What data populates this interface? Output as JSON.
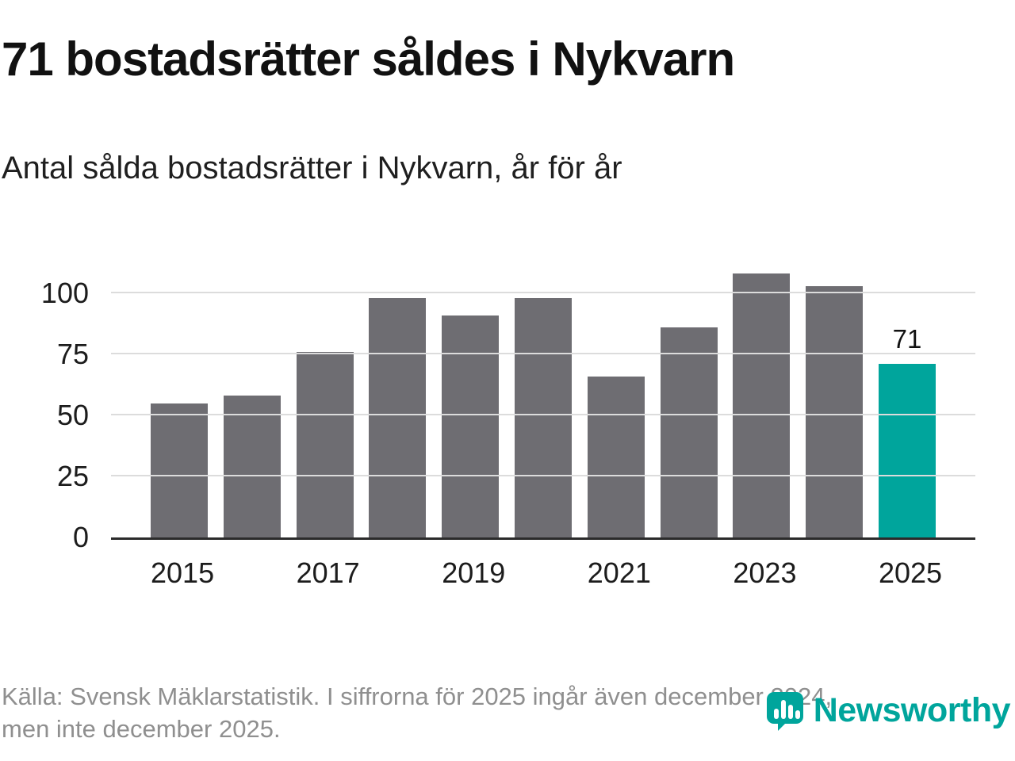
{
  "header": {
    "title": "71 bostadsrätter såldes i Nykvarn",
    "subtitle": "Antal sålda bostadsrätter i Nykvarn, år för år"
  },
  "chart_data": {
    "type": "bar",
    "title": "Antal sålda bostadsrätter i Nykvarn, år för år",
    "categories": [
      "2015",
      "2016",
      "2017",
      "2018",
      "2019",
      "2020",
      "2021",
      "2022",
      "2023",
      "2024",
      "2025"
    ],
    "values": [
      55,
      58,
      76,
      98,
      91,
      98,
      66,
      86,
      108,
      103,
      71
    ],
    "highlight": {
      "index": 10,
      "category": "2025",
      "label": "71",
      "color": "#00a59c"
    },
    "bar_color": "#6e6d72",
    "grid_color": "#dcdcdc",
    "axis_color": "#2b2b2b",
    "y_ticks": [
      0,
      25,
      50,
      75,
      100
    ],
    "x_ticks": [
      "2015",
      "2017",
      "2019",
      "2021",
      "2023",
      "2025"
    ],
    "ylim": [
      0,
      113
    ],
    "grid": true,
    "legend": false,
    "xlabel": "",
    "ylabel": ""
  },
  "footer": {
    "source_lines": [
      "Källa: Svensk Mäklarstatistik. I siffrorna för 2025 ingår även december 2024,",
      "men inte december 2025."
    ],
    "brand": "Newsworthy",
    "brand_color": "#00a59c"
  }
}
